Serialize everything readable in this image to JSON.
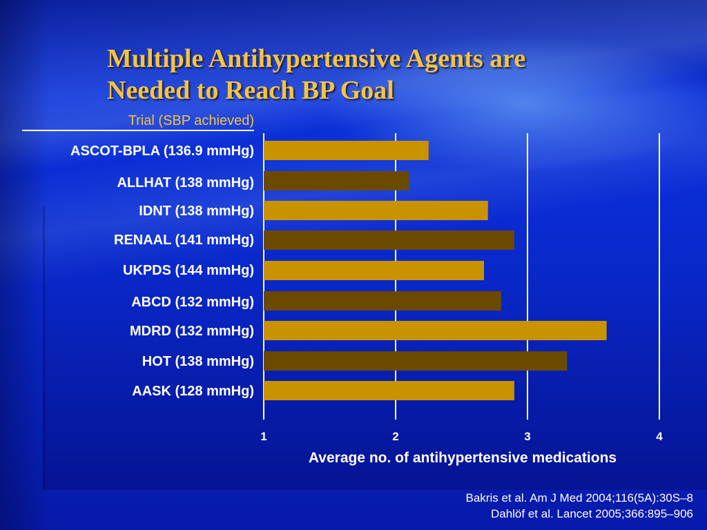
{
  "slide": {
    "title_line1": "Multiple Antihypertensive Agents are",
    "title_line2": "Needed to Reach BP Goal",
    "references": [
      "Bakris et al. Am J Med 2004;116(5A):30S–8",
      "Dahlöf et al. Lancet 2005;366:895–906"
    ]
  },
  "colors": {
    "bar_light": "#c99300",
    "bar_dark": "#6b4a00",
    "title": "#f2c440",
    "axis": "#ffffff"
  },
  "chart_data": {
    "type": "bar",
    "orientation": "horizontal",
    "category_header": "Trial (SBP achieved)",
    "categories": [
      "ASCOT-BPLA (136.9 mmHg)",
      "ALLHAT (138 mmHg)",
      "IDNT (138 mmHg)",
      "RENAAL (141 mmHg)",
      "UKPDS (144 mmHg)",
      "ABCD (132 mmHg)",
      "MDRD (132 mmHg)",
      "HOT (138 mmHg)",
      "AASK (128 mmHg)"
    ],
    "values": [
      2.25,
      2.1,
      2.7,
      2.9,
      2.67,
      2.8,
      3.6,
      3.3,
      2.9
    ],
    "xlabel": "Average no. of antihypertensive medications",
    "xlim": [
      1,
      4
    ],
    "xticks": [
      "1",
      "2",
      "3",
      "4"
    ],
    "grid": "vertical",
    "legend": "none"
  }
}
